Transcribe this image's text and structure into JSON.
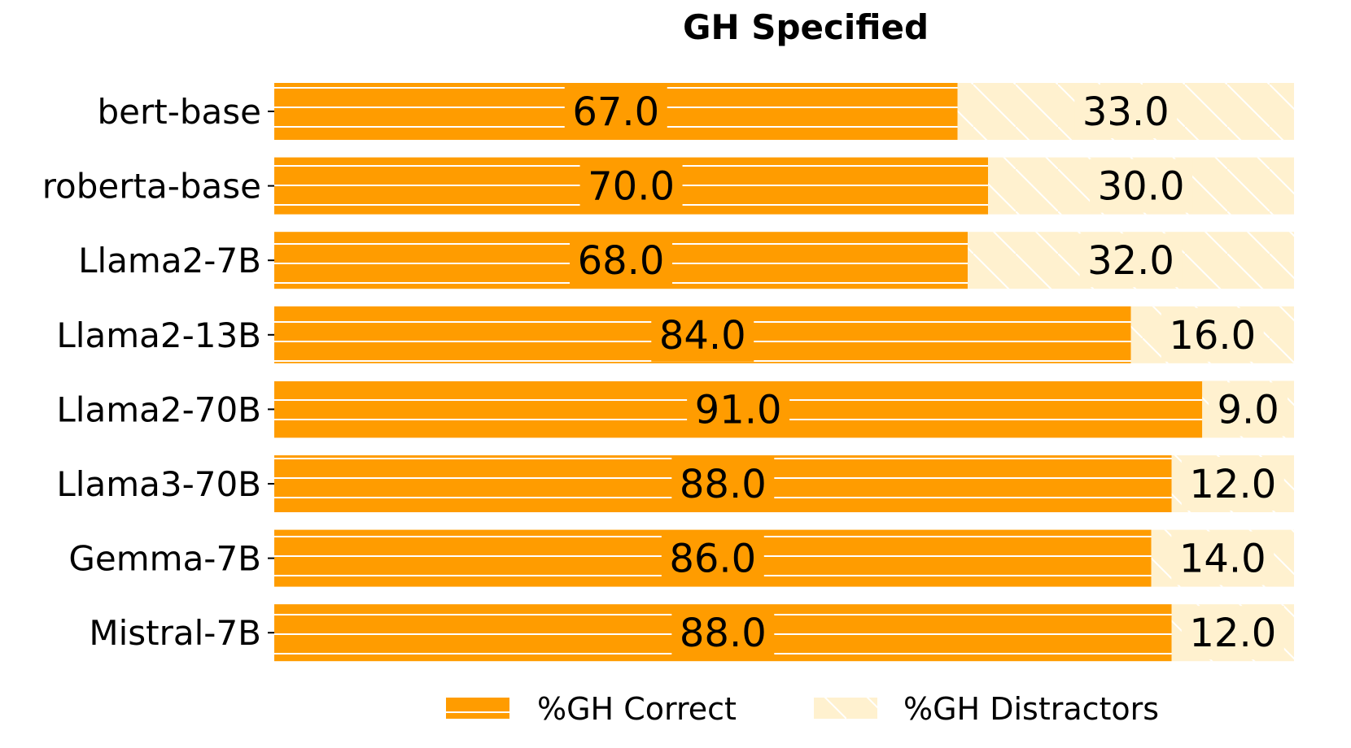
{
  "chart_data": {
    "type": "bar",
    "orientation": "horizontal",
    "stacked": true,
    "normalized": true,
    "title": "GH Specified",
    "categories": [
      "bert-base",
      "roberta-base",
      "Llama2-7B",
      "Llama2-13B",
      "Llama2-70B",
      "Llama3-70B",
      "Gemma-7B",
      "Mistral-7B"
    ],
    "series": [
      {
        "name": "%GH Correct",
        "values": [
          67.0,
          70.0,
          68.0,
          84.0,
          91.0,
          88.0,
          86.0,
          88.0
        ],
        "labels": [
          "67.0",
          "70.0",
          "68.0",
          "84.0",
          "91.0",
          "88.0",
          "86.0",
          "88.0"
        ],
        "color": "#ff9c00",
        "hatch": "horizontal-lines"
      },
      {
        "name": "%GH Distractors",
        "values": [
          33.0,
          30.0,
          32.0,
          16.0,
          9.0,
          12.0,
          14.0,
          12.0
        ],
        "labels": [
          "33.0",
          "30.0",
          "32.0",
          "16.0",
          "9.0",
          "12.0",
          "14.0",
          "12.0"
        ],
        "color": "#fff1cf",
        "hatch": "diagonal-lines"
      }
    ],
    "xlim": [
      0,
      100
    ],
    "xaxis_visible": false,
    "grid": false,
    "legend_position": "bottom"
  }
}
